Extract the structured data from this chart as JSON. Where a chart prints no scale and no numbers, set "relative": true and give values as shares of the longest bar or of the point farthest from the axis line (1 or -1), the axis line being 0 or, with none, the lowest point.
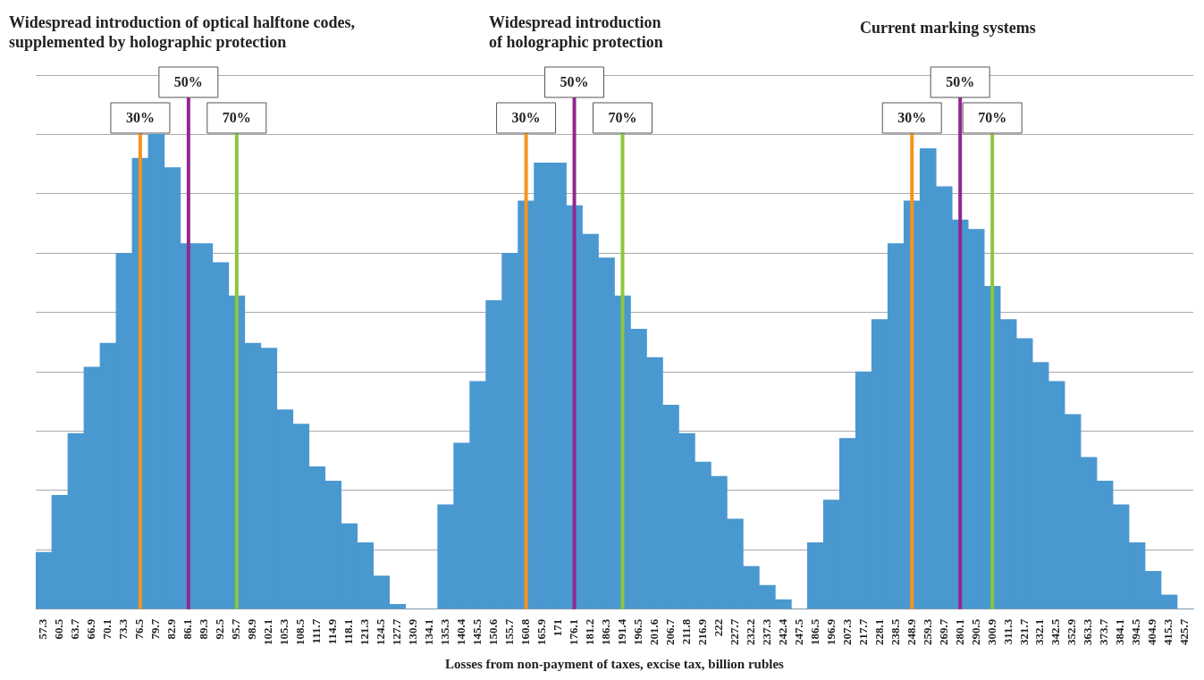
{
  "chart_data": {
    "type": "bar",
    "relative": true,
    "grid": "y",
    "legend": false,
    "tick_labels": "x",
    "xlabel": "Losses from non-payment of taxes, excise tax, billion rubles",
    "annotations": [
      "Widespread introduction of optical halftone codes,\nsupplemented by holographic protection",
      "Widespread introduction\nof holographic protection",
      "Current marking systems"
    ],
    "categories": [
      "57.3",
      "60.5",
      "63.7",
      "66.9",
      "70.1",
      "73.3",
      "76.5",
      "79.7",
      "82.9",
      "86.1",
      "89.3",
      "92.5",
      "95.7",
      "98.9",
      "102.1",
      "105.3",
      "108.5",
      "111.7",
      "114.9",
      "118.1",
      "121.3",
      "124.5",
      "127.7",
      "130.9",
      "134.1",
      "135.3",
      "140.4",
      "145.5",
      "150.6",
      "155.7",
      "160.8",
      "165.9",
      "171",
      "176.1",
      "181.2",
      "186.3",
      "191.4",
      "196.5",
      "201.6",
      "206.7",
      "211.8",
      "216.9",
      "222",
      "227.7",
      "232.2",
      "237.3",
      "242.4",
      "247.5",
      "186.5",
      "196.9",
      "207.3",
      "217.7",
      "228.1",
      "238.5",
      "248.9",
      "259.3",
      "269.7",
      "280.1",
      "290.5",
      "300.9",
      "311.3",
      "321.7",
      "332.1",
      "342.5",
      "352.9",
      "363.3",
      "373.7",
      "384.1",
      "394.5",
      "404.9",
      "415.3",
      "425.7"
    ],
    "color": "#4a98d0",
    "values": [
      0.12,
      0.24,
      0.37,
      0.51,
      0.56,
      0.75,
      0.95,
      1,
      0.93,
      0.77,
      0.77,
      0.73,
      0.66,
      0.56,
      0.55,
      0.42,
      0.39,
      0.3,
      0.27,
      0.18,
      0.14,
      0.07,
      0.01,
      0,
      0,
      0.22,
      0.35,
      0.48,
      0.65,
      0.75,
      0.86,
      0.94,
      0.94,
      0.85,
      0.79,
      0.74,
      0.66,
      0.59,
      0.53,
      0.43,
      0.37,
      0.31,
      0.28,
      0.19,
      0.09,
      0.05,
      0.02,
      0,
      0.14,
      0.23,
      0.36,
      0.5,
      0.61,
      0.77,
      0.86,
      0.97,
      0.89,
      0.82,
      0.8,
      0.68,
      0.61,
      0.57,
      0.52,
      0.48,
      0.41,
      0.32,
      0.27,
      0.22,
      0.14,
      0.08,
      0.03,
      0
    ],
    "ref_lines": [
      {
        "axis": "x",
        "value": "76.5",
        "label": "30%",
        "color": "#f7931e"
      },
      {
        "axis": "x",
        "value": "86.1",
        "label": "50%",
        "color": "#93278f"
      },
      {
        "axis": "x",
        "value": "95.7",
        "label": "70%",
        "color": "#8dc63f"
      },
      {
        "axis": "x",
        "value": "160.8",
        "label": "30%",
        "color": "#f7931e"
      },
      {
        "axis": "x",
        "value": "176.1",
        "label": "50%",
        "color": "#93278f"
      },
      {
        "axis": "x",
        "value": "191.4",
        "label": "70%",
        "color": "#8dc63f"
      },
      {
        "axis": "x",
        "value": "248.9",
        "label": "30%",
        "color": "#f7931e"
      },
      {
        "axis": "x",
        "value": "280.1",
        "label": "50%",
        "color": "#93278f"
      },
      {
        "axis": "x",
        "value": "300.9",
        "label": "70%",
        "color": "#8dc63f"
      }
    ]
  }
}
